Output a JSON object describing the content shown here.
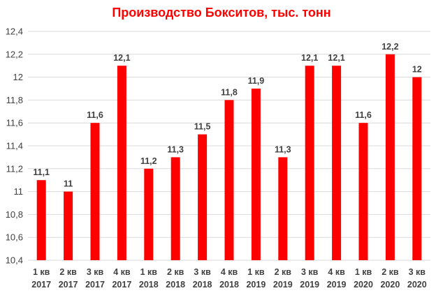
{
  "chart_data": {
    "type": "bar",
    "title": "Производство Бокситов, тыс. тонн",
    "xlabel": "",
    "ylabel": "",
    "categories": [
      [
        "1 кв",
        "2017"
      ],
      [
        "2 кв",
        "2017"
      ],
      [
        "3 кв",
        "2017"
      ],
      [
        "4 кв",
        "2017"
      ],
      [
        "1 кв",
        "2018"
      ],
      [
        "2 кв",
        "2018"
      ],
      [
        "3 кв",
        "2018"
      ],
      [
        "4 кв",
        "2018"
      ],
      [
        "1 кв",
        "2019"
      ],
      [
        "2 кв",
        "2019"
      ],
      [
        "3 кв",
        "2019"
      ],
      [
        "4 кв",
        "2019"
      ],
      [
        "1 кв",
        "2020"
      ],
      [
        "2 кв",
        "2020"
      ],
      [
        "3 кв",
        "2020"
      ]
    ],
    "values": [
      11.1,
      11,
      11.6,
      12.1,
      11.2,
      11.3,
      11.5,
      11.8,
      11.9,
      11.3,
      12.1,
      12.1,
      11.6,
      12.2,
      12
    ],
    "data_labels": [
      "11,1",
      "11",
      "11,6",
      "12,1",
      "11,2",
      "11,3",
      "11,5",
      "11,8",
      "11,9",
      "11,3",
      "12,1",
      "12,1",
      "11,6",
      "12,2",
      "12"
    ],
    "ylim": [
      10.4,
      12.4
    ],
    "yticks": [
      10.4,
      10.6,
      10.8,
      11,
      11.2,
      11.4,
      11.6,
      11.8,
      12,
      12.2,
      12.4
    ],
    "ytick_labels": [
      "10,4",
      "10,6",
      "10,8",
      "11",
      "11,2",
      "11,4",
      "11,6",
      "11,8",
      "12",
      "12,2",
      "12,4"
    ],
    "grid": true,
    "legend": "none",
    "colors": {
      "bar": "#ff0000",
      "title": "#ff0000",
      "grid": "#d9d9d9",
      "text": "#404040"
    }
  }
}
